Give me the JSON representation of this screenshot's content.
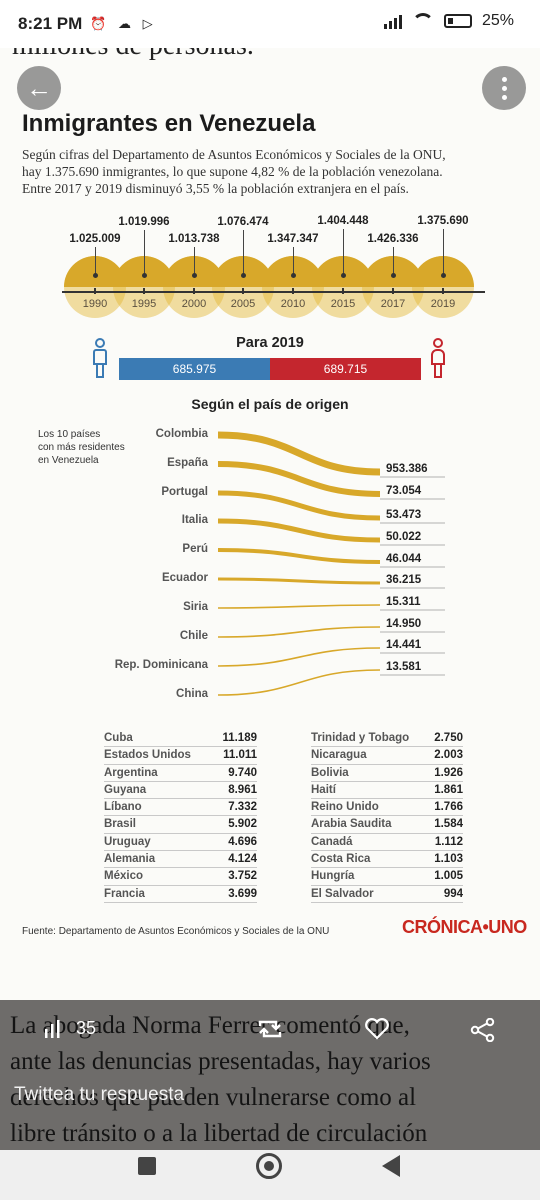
{
  "status_bar": {
    "time": "8:21 PM",
    "battery": "25"
  },
  "prev_text": "millones de personas.",
  "infographic": {
    "title": "Inmigrantes en Venezuela",
    "subtitle_lines": [
      "Según cifras del Departamento de Asuntos Económicos y Sociales de la ONU,",
      "hay 1.375.690 inmigrantes, lo que supone 4,82 % de la población venezolana.",
      "Entre 2017 y 2019 disminuyó 3,55 % la población extranjera en el país."
    ],
    "timeline": [
      {
        "year": "1990",
        "value": "1.025.009"
      },
      {
        "year": "1995",
        "value": "1.019.996"
      },
      {
        "year": "2000",
        "value": "1.013.738"
      },
      {
        "year": "2005",
        "value": "1.076.474"
      },
      {
        "year": "2010",
        "value": "1.347.347"
      },
      {
        "year": "2015",
        "value": "1.404.448"
      },
      {
        "year": "2017",
        "value": "1.426.336"
      },
      {
        "year": "2019",
        "value": "1.375.690"
      }
    ],
    "gender_title": "Para 2019",
    "men_value": "685.975",
    "women_value": "689.715",
    "men_color": "#3b7bb4",
    "women_color": "#c4262e",
    "accent_color": "#d8a82a",
    "origin_title": "Según el país de origen",
    "origin_note": [
      "Los 10 países",
      "con más residentes",
      "en Venezuela"
    ],
    "top_countries": [
      "Colombia",
      "España",
      "Portugal",
      "Italia",
      "Perú",
      "Ecuador",
      "Siria",
      "Chile",
      "Rep. Dominicana",
      "China"
    ],
    "top_values": [
      "953.386",
      "73.054",
      "53.473",
      "50.022",
      "46.044",
      "36.215",
      "15.311",
      "14.950",
      "14.441",
      "13.581"
    ],
    "table_left": [
      {
        "name": "Cuba",
        "value": "11.189"
      },
      {
        "name": "Estados Unidos",
        "value": "11.011"
      },
      {
        "name": "Argentina",
        "value": "9.740"
      },
      {
        "name": "Guyana",
        "value": "8.961"
      },
      {
        "name": "Líbano",
        "value": "7.332"
      },
      {
        "name": "Brasil",
        "value": "5.902"
      },
      {
        "name": "Uruguay",
        "value": "4.696"
      },
      {
        "name": "Alemania",
        "value": "4.124"
      },
      {
        "name": "México",
        "value": "3.752"
      },
      {
        "name": "Francia",
        "value": "3.699"
      }
    ],
    "table_right": [
      {
        "name": "Trinidad y Tobago",
        "value": "2.750"
      },
      {
        "name": "Nicaragua",
        "value": "2.003"
      },
      {
        "name": "Bolivia",
        "value": "1.926"
      },
      {
        "name": "Haití",
        "value": "1.861"
      },
      {
        "name": "Reino Unido",
        "value": "1.766"
      },
      {
        "name": "Arabia Saudita",
        "value": "1.584"
      },
      {
        "name": "Canadá",
        "value": "1.112"
      },
      {
        "name": "Costa Rica",
        "value": "1.103"
      },
      {
        "name": "Hungría",
        "value": "1.005"
      },
      {
        "name": "El Salvador",
        "value": "994"
      }
    ],
    "source": "Fuente: Departamento de Asuntos Económicos y Sociales de la ONU",
    "logo": "CRÓNICA•UNO"
  },
  "article_lines": [
    "La abogada Norma Ferrer comentó que,",
    "ante las denuncias presentadas, hay varios",
    "derechos que pueden vulnerarse como al",
    "libre tránsito o a la libertad de circulación"
  ],
  "actions": {
    "views": "35"
  },
  "reply_placeholder": "Twittea tu respuesta",
  "icons": [
    "back-arrow-icon",
    "more-vert-icon",
    "views-icon",
    "retweet-icon",
    "like-icon",
    "share-icon",
    "nav-recents-icon",
    "nav-home-icon",
    "nav-back-icon"
  ]
}
